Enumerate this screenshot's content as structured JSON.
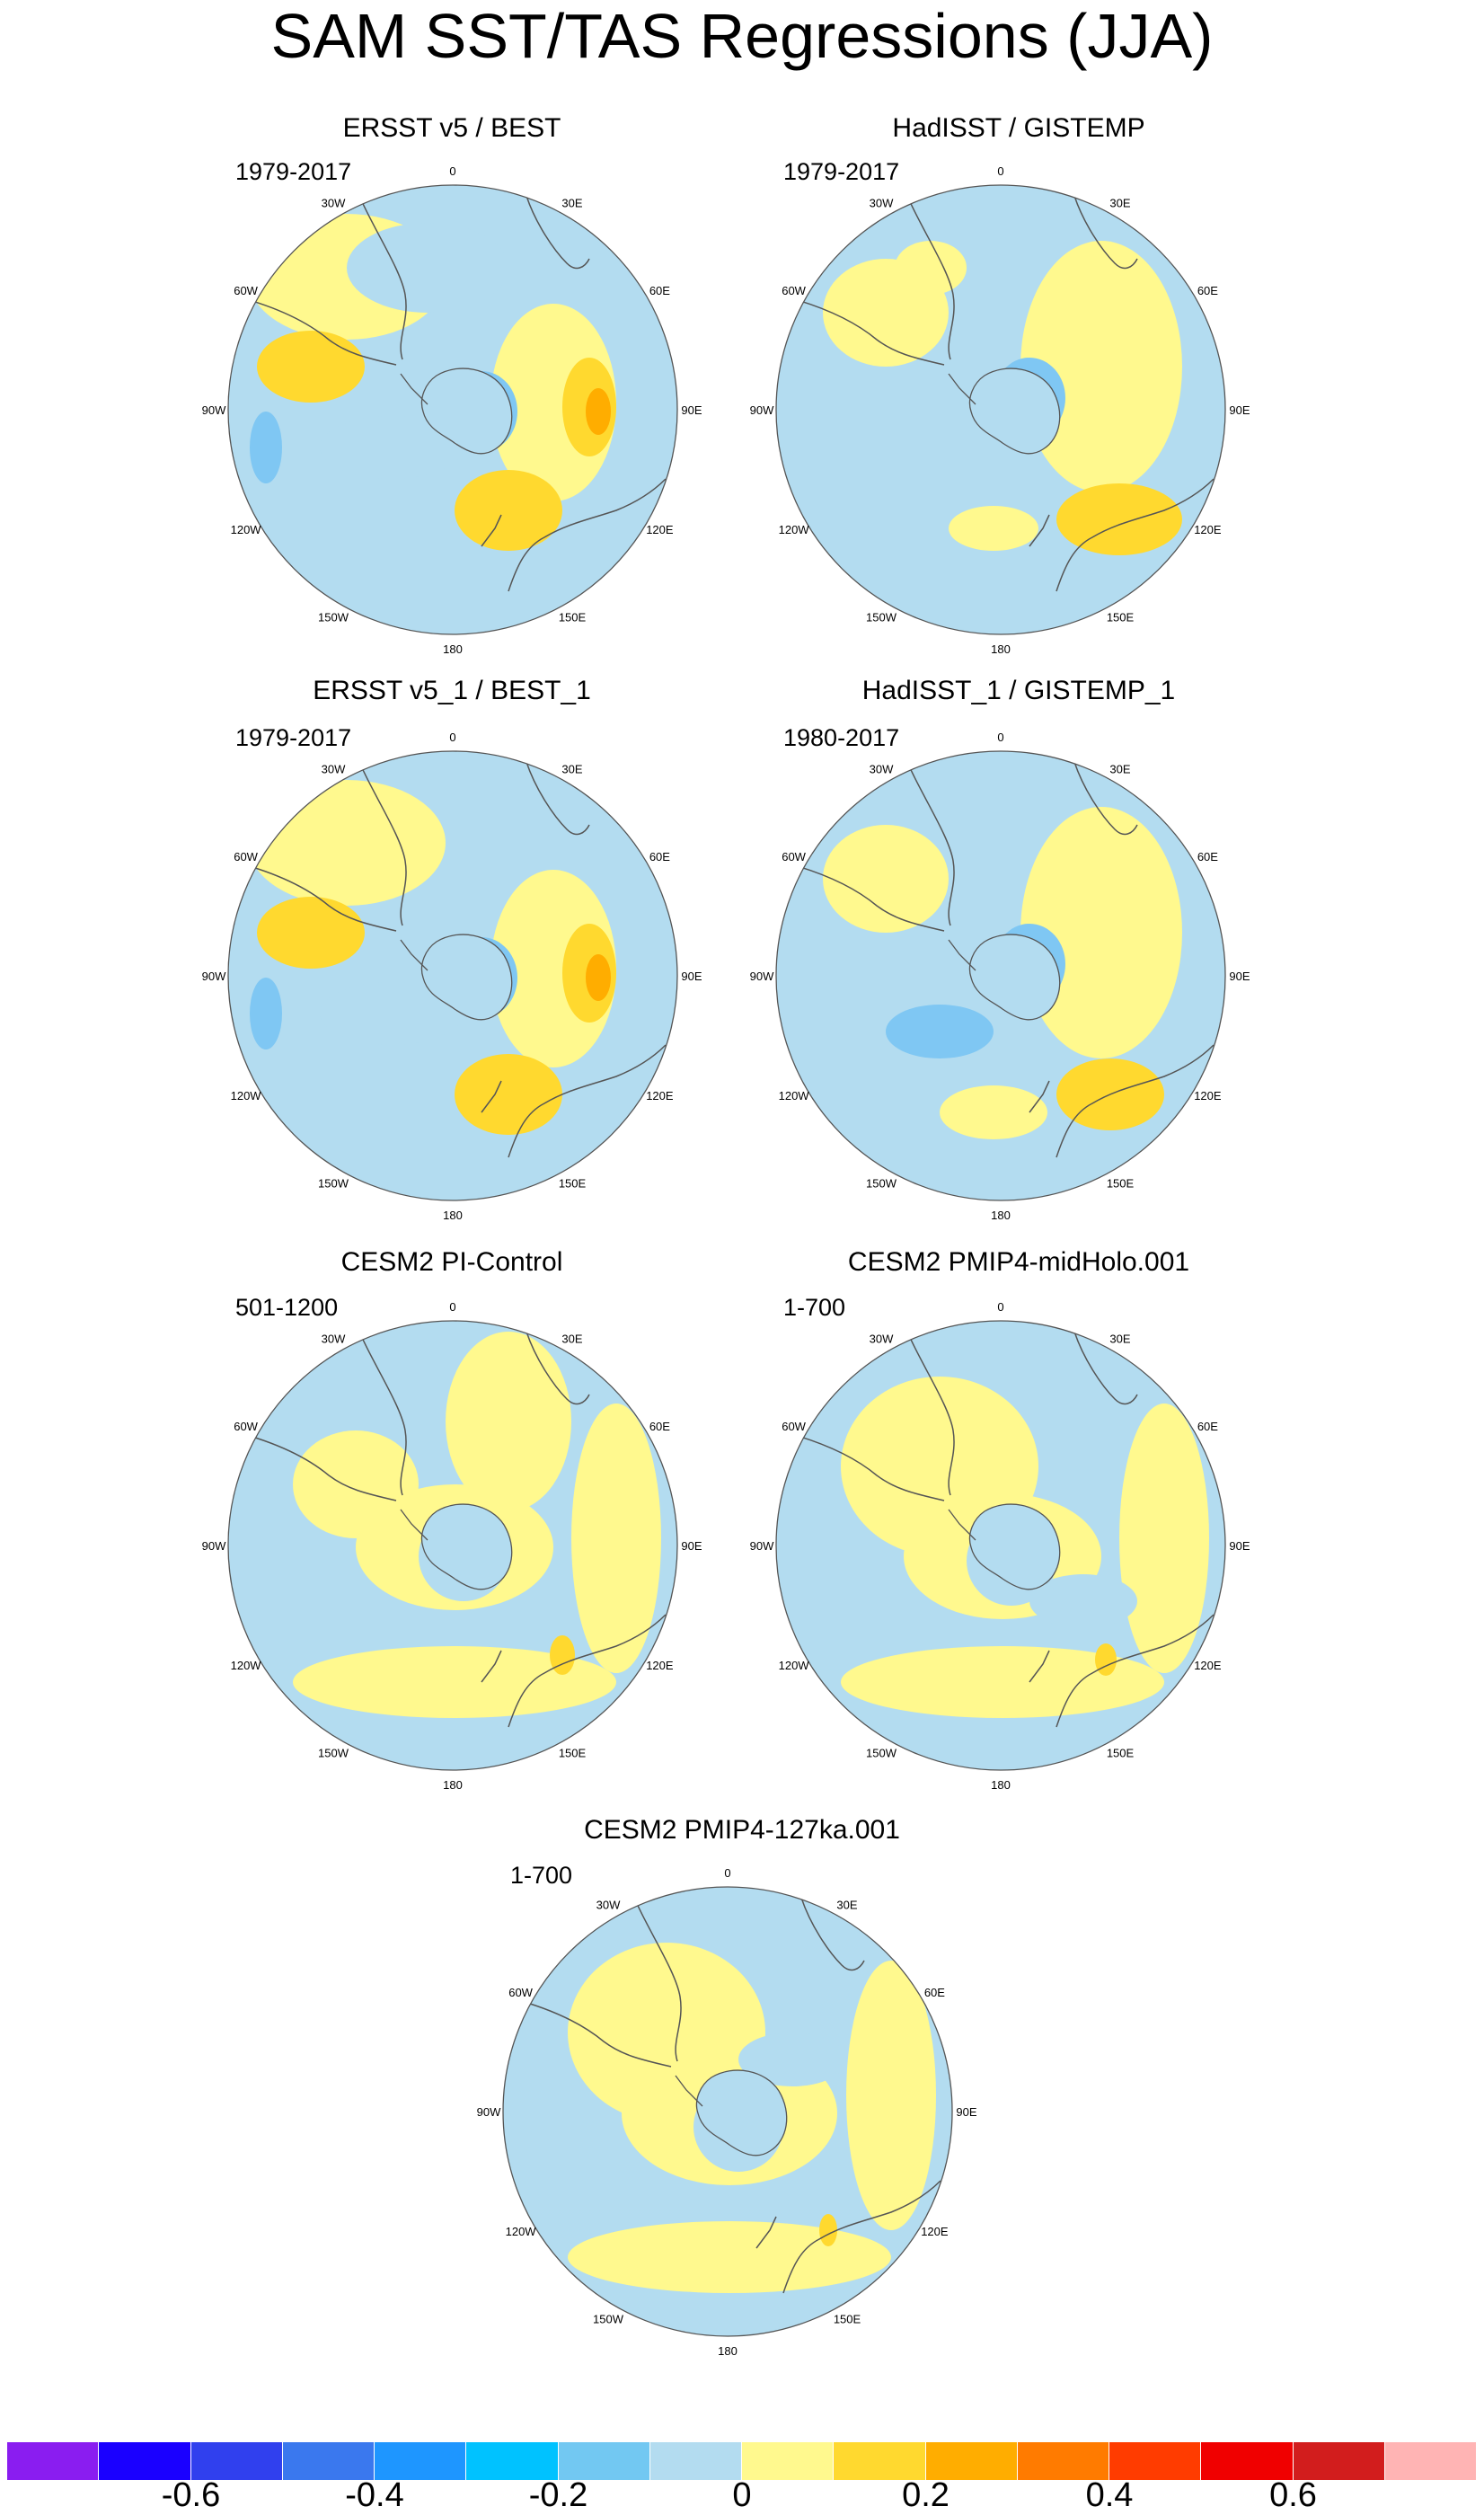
{
  "title": "SAM SST/TAS Regressions (JJA)",
  "lon_labels": [
    "0",
    "30E",
    "60E",
    "90E",
    "120E",
    "150E",
    "180",
    "150W",
    "120W",
    "90W",
    "60W",
    "30W"
  ],
  "palette": {
    "ocean_neutral_neg": "#b3dcf0",
    "neutral_pos": "#fff98e",
    "pos_0_1": "#ffd92f",
    "pos_0_2": "#ffad00",
    "neg_0_1": "#7fc7f3",
    "neg_0_2": "#56b2f2",
    "land_fill": "#b3dcf0",
    "coast": "#555555"
  },
  "panels": [
    {
      "id": "ersst-best",
      "title": "ERSST v5 / BEST",
      "period": "1979-2017"
    },
    {
      "id": "hadisst-gistemp",
      "title": "HadISST / GISTEMP",
      "period": "1979-2017"
    },
    {
      "id": "ersst1-best1",
      "title": "ERSST v5_1 / BEST_1",
      "period": "1979-2017"
    },
    {
      "id": "hadisst1-gistemp1",
      "title": "HadISST_1 / GISTEMP_1",
      "period": "1980-2017"
    },
    {
      "id": "cesm2-picontrol",
      "title": "CESM2 PI-Control",
      "period": "501-1200"
    },
    {
      "id": "cesm2-midholo",
      "title": "CESM2 PMIP4-midHolo.001",
      "period": "1-700"
    },
    {
      "id": "cesm2-127ka",
      "title": "CESM2 PMIP4-127ka.001",
      "period": "1-700"
    }
  ],
  "colorbar": {
    "colors": [
      "#8a1df0",
      "#1a00ff",
      "#3040ee",
      "#3a78ee",
      "#1e96ff",
      "#00c2ff",
      "#72c8f2",
      "#b3dcf0",
      "#fff98e",
      "#ffd92f",
      "#ffad00",
      "#ff7b00",
      "#ff3c00",
      "#f00000",
      "#d21d1d",
      "#ffb4b4"
    ],
    "tick_labels": [
      {
        "text": "-0.6",
        "value": -0.6
      },
      {
        "text": "-0.4",
        "value": -0.4
      },
      {
        "text": "-0.2",
        "value": -0.2
      },
      {
        "text": "0",
        "value": 0
      },
      {
        "text": "0.2",
        "value": 0.2
      },
      {
        "text": "0.4",
        "value": 0.4
      },
      {
        "text": "0.6",
        "value": 0.6
      }
    ],
    "min": -0.8,
    "max": 0.8
  }
}
